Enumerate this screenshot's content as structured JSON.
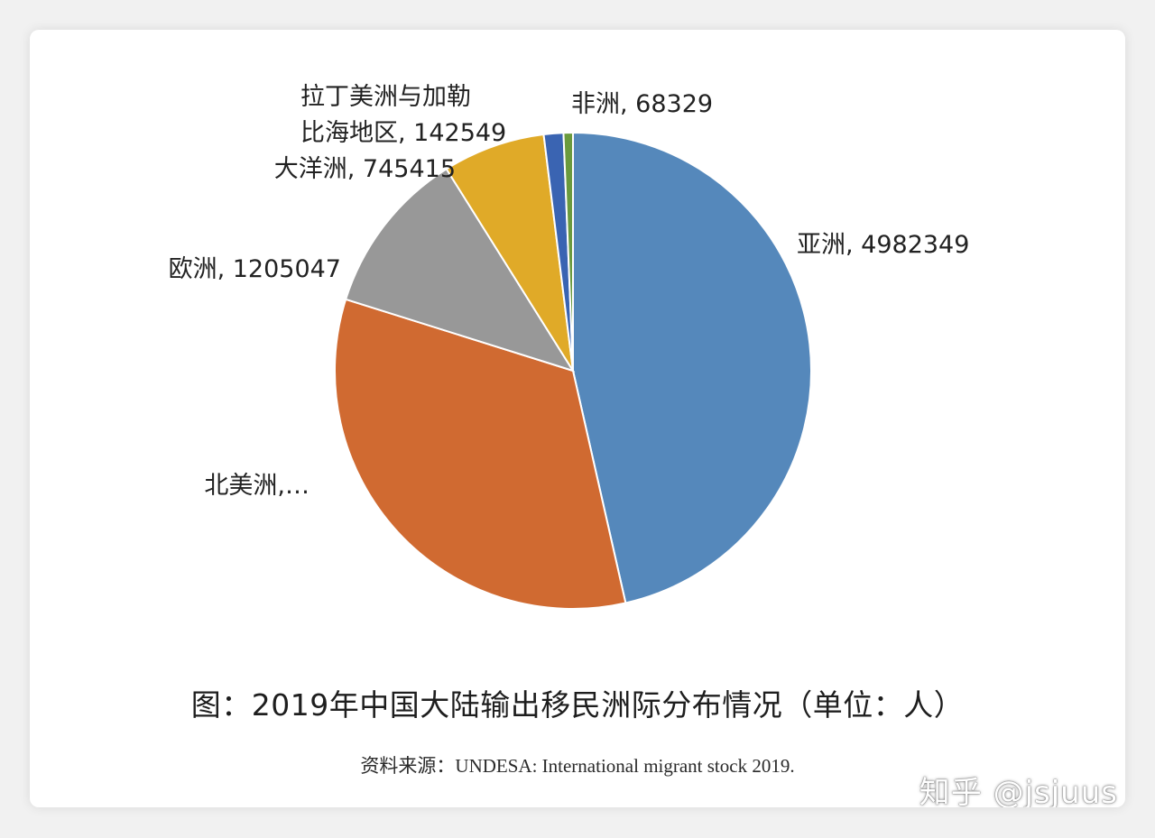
{
  "chart_data": {
    "type": "pie",
    "title": "图：2019年中国大陆输出移民洲际分布情况（单位：人）",
    "source": "资料来源：UNDESA: International migrant stock 2019.",
    "slices": [
      {
        "name": "亚洲",
        "value": 4982349,
        "label_lines": [
          "亚洲, 4982349"
        ],
        "color": "#5588bb"
      },
      {
        "name": "北美洲",
        "value": 3582000,
        "label_lines": [
          "北美洲,…"
        ],
        "color": "#d06a31"
      },
      {
        "name": "欧洲",
        "value": 1205047,
        "label_lines": [
          "欧洲, 1205047"
        ],
        "color": "#989898"
      },
      {
        "name": "大洋洲",
        "value": 745415,
        "label_lines": [
          "大洋洲, 745415"
        ],
        "color": "#e0aa28"
      },
      {
        "name": "拉丁美洲与加勒比海地区",
        "value": 142549,
        "label_lines": [
          "拉丁美洲与加勒",
          "比海地区, 142549"
        ],
        "color": "#3a64b2"
      },
      {
        "name": "非洲",
        "value": 68329,
        "label_lines": [
          "非洲, 68329"
        ],
        "color": "#6a9a3e"
      }
    ]
  },
  "watermark": "知乎 @jsjuus"
}
